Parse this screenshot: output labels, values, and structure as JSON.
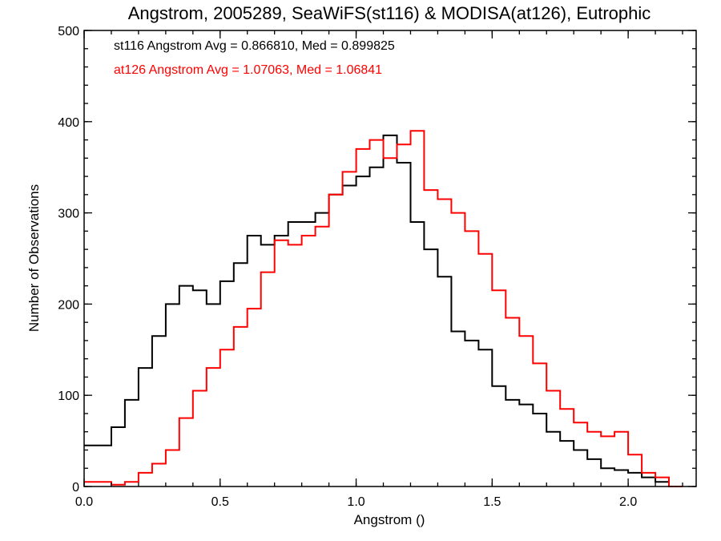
{
  "chart_data": {
    "type": "line",
    "title": "Angstrom, 2005289, SeaWiFS(st116) & MODISA(at126), Eutrophic",
    "xlabel": "Angstrom ()",
    "ylabel": "Number of Observations",
    "xlim": [
      0.0,
      2.25
    ],
    "ylim": [
      0,
      500
    ],
    "xticks": [
      0.0,
      0.5,
      1.0,
      1.5,
      2.0
    ],
    "xtick_labels": [
      "0.0",
      "0.5",
      "1.0",
      "1.5",
      "2.0"
    ],
    "yticks": [
      0,
      100,
      200,
      300,
      400,
      500
    ],
    "ytick_labels": [
      "0",
      "100",
      "200",
      "300",
      "400",
      "500"
    ],
    "step": "histogram",
    "grid": false,
    "annotations": [
      {
        "text": "st116 Angstrom Avg = 0.866810, Med = 0.899825",
        "color": "#000000"
      },
      {
        "text": "at126 Angstrom Avg = 1.07063, Med = 1.06841",
        "color": "#ff0000"
      }
    ],
    "series": [
      {
        "name": "st116",
        "color": "#000000",
        "x": [
          0.0,
          0.05,
          0.1,
          0.15,
          0.2,
          0.25,
          0.3,
          0.35,
          0.4,
          0.45,
          0.5,
          0.55,
          0.6,
          0.65,
          0.7,
          0.75,
          0.8,
          0.85,
          0.9,
          0.95,
          1.0,
          1.05,
          1.1,
          1.15,
          1.2,
          1.25,
          1.3,
          1.35,
          1.4,
          1.45,
          1.5,
          1.55,
          1.6,
          1.65,
          1.7,
          1.75,
          1.8,
          1.85,
          1.9,
          1.95,
          2.0,
          2.05,
          2.1,
          2.15
        ],
        "y": [
          45,
          45,
          65,
          95,
          130,
          165,
          200,
          220,
          215,
          200,
          225,
          245,
          275,
          265,
          275,
          290,
          290,
          300,
          320,
          330,
          340,
          350,
          385,
          355,
          290,
          260,
          230,
          170,
          160,
          150,
          110,
          95,
          90,
          80,
          60,
          50,
          40,
          30,
          20,
          18,
          15,
          10,
          5,
          0
        ]
      },
      {
        "name": "at126",
        "color": "#ff0000",
        "x": [
          0.0,
          0.05,
          0.1,
          0.15,
          0.2,
          0.25,
          0.3,
          0.35,
          0.4,
          0.45,
          0.5,
          0.55,
          0.6,
          0.65,
          0.7,
          0.75,
          0.8,
          0.85,
          0.9,
          0.95,
          1.0,
          1.05,
          1.1,
          1.15,
          1.2,
          1.25,
          1.3,
          1.35,
          1.4,
          1.45,
          1.5,
          1.55,
          1.6,
          1.65,
          1.7,
          1.75,
          1.8,
          1.85,
          1.9,
          1.95,
          2.0,
          2.05,
          2.1,
          2.15
        ],
        "y": [
          5,
          5,
          2,
          5,
          15,
          25,
          40,
          75,
          105,
          130,
          150,
          175,
          195,
          235,
          270,
          265,
          275,
          285,
          320,
          345,
          370,
          380,
          360,
          375,
          390,
          325,
          315,
          300,
          280,
          255,
          215,
          185,
          165,
          135,
          105,
          85,
          70,
          60,
          55,
          60,
          35,
          15,
          10,
          0
        ]
      }
    ]
  }
}
